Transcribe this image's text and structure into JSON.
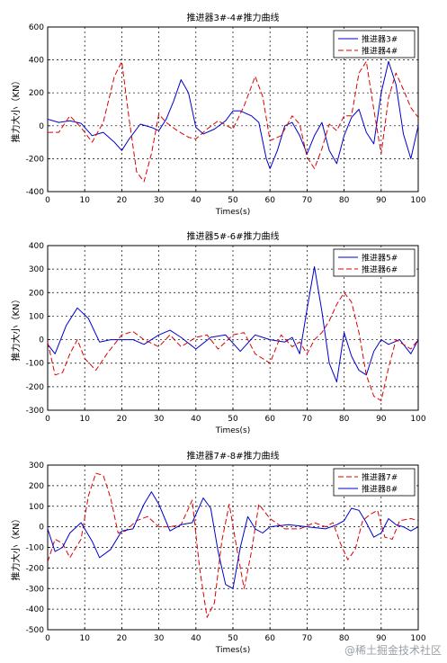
{
  "watermark": "@稀土掘金技术社区",
  "chart_data": [
    {
      "type": "line",
      "title": "推进器3#-4#推力曲线",
      "xlabel": "Times(s)",
      "ylabel": "推力大小（KN）",
      "xlim": [
        0,
        100
      ],
      "ylim": [
        -400,
        600
      ],
      "xticks": [
        0,
        10,
        20,
        30,
        40,
        50,
        60,
        70,
        80,
        90,
        100
      ],
      "yticks": [
        -400,
        -200,
        0,
        200,
        400,
        600
      ],
      "grid": true,
      "legend_position": "top-right",
      "series": [
        {
          "name": "推进器3#",
          "color": "#0000cc",
          "dash": "solid",
          "x": [
            0,
            3,
            6,
            9,
            12,
            15,
            18,
            20,
            22,
            25,
            28,
            30,
            32,
            34,
            36,
            38,
            40,
            42,
            45,
            48,
            50,
            52,
            55,
            57,
            59,
            60,
            62,
            64,
            66,
            68,
            70,
            72,
            74,
            76,
            78,
            80,
            82,
            84,
            86,
            88,
            90,
            92,
            94,
            96,
            98,
            100
          ],
          "y": [
            40,
            20,
            30,
            15,
            -60,
            -40,
            -100,
            -150,
            -80,
            10,
            -10,
            -30,
            40,
            150,
            280,
            200,
            -10,
            -50,
            -20,
            30,
            90,
            90,
            60,
            20,
            -200,
            -260,
            -150,
            0,
            20,
            -60,
            -170,
            -60,
            20,
            -150,
            -230,
            -60,
            50,
            100,
            -40,
            -110,
            200,
            390,
            250,
            -50,
            -200,
            0
          ]
        },
        {
          "name": "推进器4#",
          "color": "#dd0000",
          "dash": "dashed",
          "x": [
            0,
            3,
            6,
            9,
            12,
            15,
            18,
            20,
            22,
            24,
            26,
            28,
            30,
            32,
            35,
            38,
            40,
            43,
            46,
            50,
            53,
            56,
            58,
            60,
            63,
            66,
            68,
            70,
            72,
            74,
            76,
            78,
            80,
            82,
            84,
            86,
            88,
            90,
            92,
            94,
            96,
            98,
            100
          ],
          "y": [
            -40,
            -40,
            60,
            -10,
            -100,
            20,
            300,
            390,
            40,
            -280,
            -340,
            -170,
            70,
            20,
            -30,
            -70,
            -80,
            -20,
            30,
            -20,
            120,
            300,
            180,
            -90,
            -60,
            60,
            10,
            -190,
            -260,
            -140,
            10,
            -30,
            60,
            60,
            320,
            390,
            100,
            -170,
            170,
            320,
            220,
            110,
            50
          ]
        }
      ]
    },
    {
      "type": "line",
      "title": "推进器5#-6#推力曲线",
      "xlabel": "Times(s)",
      "ylabel": "推力大小（KN）",
      "xlim": [
        0,
        100
      ],
      "ylim": [
        -300,
        400
      ],
      "xticks": [
        0,
        10,
        20,
        30,
        40,
        50,
        60,
        70,
        80,
        90,
        100
      ],
      "yticks": [
        -300,
        -200,
        -100,
        0,
        100,
        200,
        300,
        400
      ],
      "grid": true,
      "legend_position": "top-right",
      "series": [
        {
          "name": "推进器5#",
          "color": "#0000cc",
          "dash": "solid",
          "x": [
            0,
            2,
            5,
            8,
            11,
            14,
            17,
            20,
            23,
            26,
            30,
            33,
            36,
            40,
            44,
            48,
            52,
            56,
            58,
            60,
            64,
            66,
            68,
            70,
            72,
            74,
            76,
            78,
            80,
            82,
            84,
            86,
            88,
            90,
            92,
            95,
            98,
            100
          ],
          "y": [
            -20,
            -60,
            60,
            135,
            90,
            -10,
            0,
            0,
            0,
            -20,
            20,
            40,
            10,
            -40,
            10,
            20,
            -50,
            20,
            10,
            0,
            -10,
            10,
            -60,
            130,
            310,
            120,
            -100,
            -180,
            30,
            -70,
            -130,
            -150,
            -50,
            0,
            -20,
            0,
            -60,
            0
          ]
        },
        {
          "name": "推进器6#",
          "color": "#dd0000",
          "dash": "dashed",
          "x": [
            0,
            2,
            4,
            6,
            8,
            10,
            13,
            16,
            20,
            23,
            26,
            30,
            33,
            36,
            40,
            43,
            46,
            50,
            53,
            56,
            60,
            63,
            66,
            68,
            70,
            72,
            74,
            76,
            78,
            80,
            82,
            84,
            86,
            88,
            90,
            92,
            94,
            96,
            98,
            100
          ],
          "y": [
            -10,
            -150,
            -140,
            -60,
            0,
            -80,
            -130,
            -60,
            20,
            35,
            0,
            -30,
            20,
            -30,
            10,
            20,
            -40,
            20,
            30,
            -60,
            -100,
            20,
            -30,
            -10,
            -60,
            0,
            30,
            80,
            150,
            200,
            160,
            30,
            -150,
            -240,
            -260,
            -120,
            0,
            -20,
            -40,
            0
          ]
        }
      ]
    },
    {
      "type": "line",
      "title": "推进器7#-8#推力曲线",
      "xlabel": "Times(s)",
      "ylabel": "推力大小（KN）",
      "xlim": [
        0,
        100
      ],
      "ylim": [
        -500,
        300
      ],
      "xticks": [
        0,
        10,
        20,
        30,
        40,
        50,
        60,
        70,
        80,
        90,
        100
      ],
      "yticks": [
        -500,
        -400,
        -300,
        -200,
        -100,
        0,
        100,
        200,
        300
      ],
      "grid": true,
      "legend_position": "top-right",
      "series": [
        {
          "name": "推进器7#",
          "color": "#dd0000",
          "dash": "dashed",
          "x": [
            0,
            2,
            4,
            6,
            9,
            11,
            13,
            15,
            17,
            19,
            21,
            24,
            27,
            30,
            33,
            36,
            39,
            41,
            43,
            45,
            47,
            49,
            51,
            53,
            55,
            57,
            60,
            64,
            68,
            72,
            75,
            77,
            79,
            81,
            83,
            85,
            87,
            89,
            91,
            93,
            95,
            98,
            100
          ],
          "y": [
            -170,
            -60,
            -80,
            -150,
            -60,
            150,
            260,
            250,
            140,
            -30,
            -20,
            30,
            50,
            0,
            0,
            10,
            130,
            -200,
            -440,
            -370,
            -70,
            110,
            -100,
            -300,
            -120,
            110,
            40,
            -10,
            -10,
            20,
            0,
            20,
            -80,
            -160,
            -110,
            30,
            60,
            80,
            -50,
            -60,
            30,
            40,
            30
          ]
        },
        {
          "name": "推进器8#",
          "color": "#0000cc",
          "dash": "solid",
          "x": [
            0,
            2,
            4,
            6,
            9,
            12,
            14,
            17,
            20,
            23,
            26,
            28,
            30,
            33,
            36,
            39,
            42,
            44,
            46,
            48,
            50,
            52,
            54,
            56,
            58,
            60,
            65,
            70,
            75,
            78,
            80,
            82,
            84,
            86,
            88,
            90,
            92,
            94,
            96,
            98,
            100
          ],
          "y": [
            -10,
            -120,
            -100,
            -30,
            20,
            -70,
            -150,
            -110,
            -20,
            -10,
            110,
            170,
            110,
            -20,
            10,
            20,
            140,
            90,
            -120,
            -280,
            -300,
            -100,
            50,
            -10,
            -30,
            0,
            10,
            0,
            -10,
            10,
            30,
            90,
            80,
            20,
            -50,
            -30,
            40,
            10,
            0,
            -20,
            0
          ]
        }
      ]
    }
  ]
}
